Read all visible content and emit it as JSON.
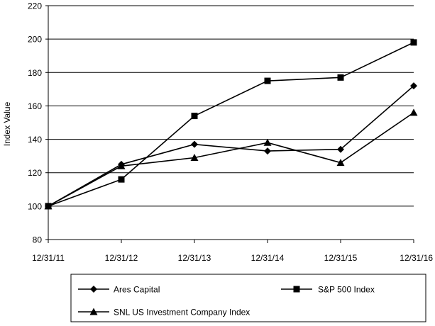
{
  "chart_data": {
    "type": "line",
    "ylabel": "Index Value",
    "xlabel": "",
    "ylim": [
      80,
      220
    ],
    "yticks": [
      80,
      100,
      120,
      140,
      160,
      180,
      200,
      220
    ],
    "categories": [
      "12/31/11",
      "12/31/12",
      "12/31/13",
      "12/31/14",
      "12/31/15",
      "12/31/16"
    ],
    "grid": "horizontal",
    "legend_position": "bottom",
    "series": [
      {
        "name": "Ares Capital",
        "marker": "diamond",
        "values": [
          100,
          125,
          137,
          133,
          134,
          172
        ]
      },
      {
        "name": "S&P 500 Index",
        "marker": "square",
        "values": [
          100,
          116,
          154,
          175,
          177,
          198
        ]
      },
      {
        "name": "SNL US Investment Company Index",
        "marker": "triangle",
        "values": [
          100,
          124,
          129,
          138,
          126,
          156
        ]
      }
    ]
  }
}
